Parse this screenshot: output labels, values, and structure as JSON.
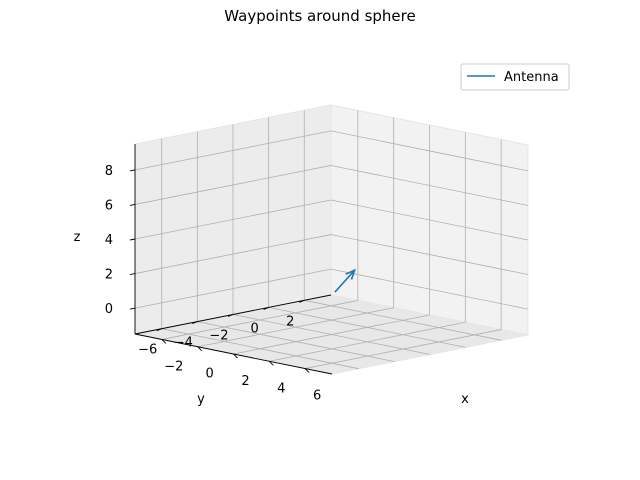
{
  "chart_data": {
    "type": "line",
    "projection": "3d",
    "title": "Waypoints around sphere",
    "xlabel": "x",
    "ylabel": "y",
    "zlabel": "z",
    "xlim": [
      -3.5,
      7.5
    ],
    "ylim": [
      -7.5,
      3.5
    ],
    "zlim": [
      -1.5,
      9.5
    ],
    "xticks": [
      -2,
      0,
      2,
      4,
      6
    ],
    "yticks": [
      2,
      0,
      -2,
      -4,
      -6
    ],
    "zticks": [
      0,
      2,
      4,
      6,
      8
    ],
    "grid": true,
    "legend": {
      "position": "top-right",
      "entries": [
        "Antenna"
      ]
    },
    "series": [
      {
        "name": "Antenna",
        "color": "#1f77b4",
        "kind": "arrow",
        "points": [
          {
            "x": -0.2,
            "y": 0.4,
            "z": 0.0
          },
          {
            "x": 0.9,
            "y": 0.4,
            "z": 1.5
          }
        ]
      }
    ]
  }
}
